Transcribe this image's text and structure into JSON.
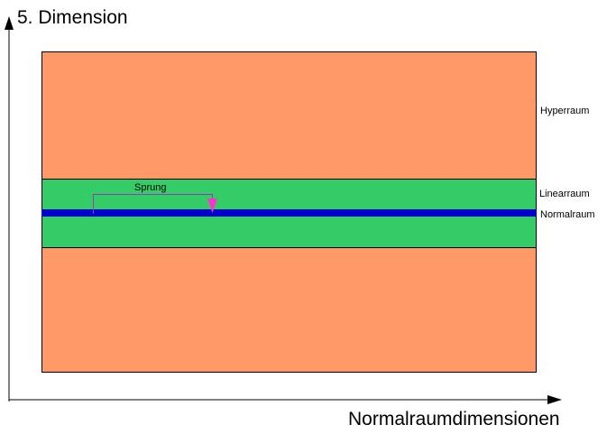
{
  "axes": {
    "y_label": "5. Dimension",
    "x_label": "Normalraumdimensionen"
  },
  "regions": [
    {
      "label": "Hyperraum"
    },
    {
      "label": "Linearraum"
    },
    {
      "label": "Normalraum"
    }
  ],
  "jump": {
    "label": "Sprung"
  }
}
